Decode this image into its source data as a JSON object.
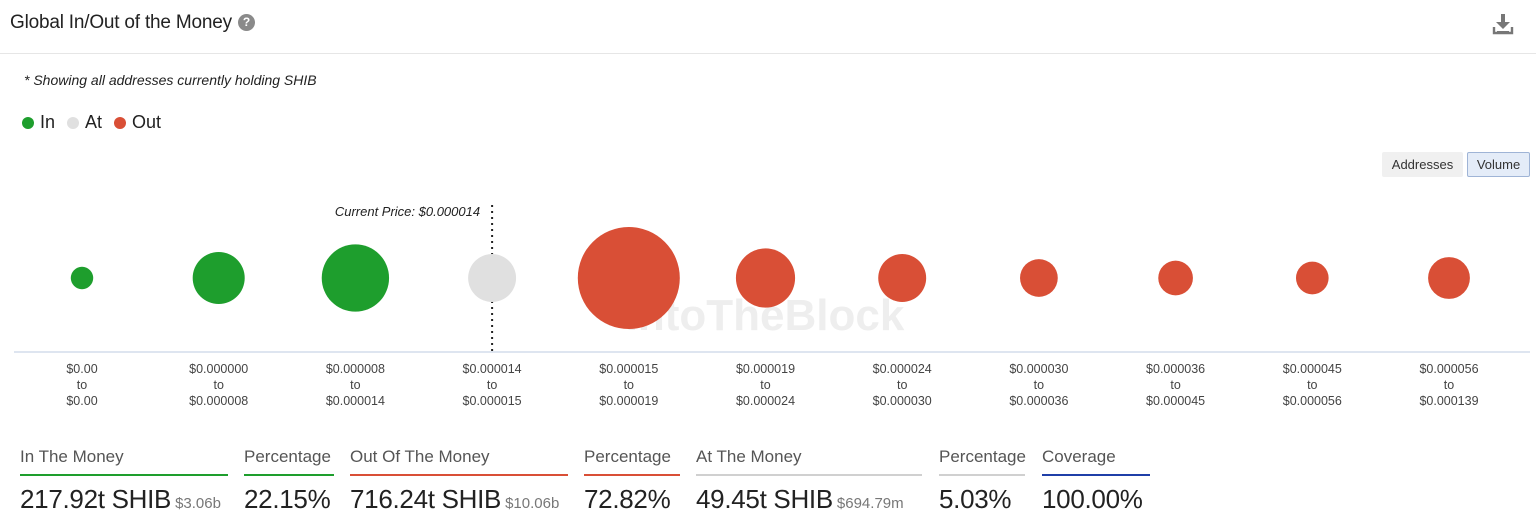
{
  "header": {
    "title": "Global In/Out of the Money",
    "help_glyph": "?"
  },
  "note": "* Showing all addresses currently holding SHIB",
  "legend": [
    {
      "label": "In",
      "color": "#1e9e2d"
    },
    {
      "label": "At",
      "color": "#e0e0e0"
    },
    {
      "label": "Out",
      "color": "#d94f36"
    }
  ],
  "toggles": {
    "addresses": "Addresses",
    "volume": "Volume",
    "active": "Volume"
  },
  "colors": {
    "in": "#1e9e2d",
    "at": "#e0e0e0",
    "out": "#d94f36",
    "axis": "#c9d5e6",
    "watermark": "#eeeeee"
  },
  "chart_data": {
    "type": "bubble",
    "measure": "Volume",
    "current_price_label": "Current Price: $0.000014",
    "watermark": "IntoTheBlock",
    "range_connector": "to",
    "buckets": [
      {
        "from": "$0.00",
        "to": "$0.00",
        "status": "in",
        "relative_size": 0.22
      },
      {
        "from": "$0.000000",
        "to": "$0.000008",
        "status": "in",
        "relative_size": 0.51
      },
      {
        "from": "$0.000008",
        "to": "$0.000014",
        "status": "in",
        "relative_size": 0.66
      },
      {
        "from": "$0.000014",
        "to": "$0.000015",
        "status": "at",
        "relative_size": 0.47
      },
      {
        "from": "$0.000015",
        "to": "$0.000019",
        "status": "out",
        "relative_size": 1.0
      },
      {
        "from": "$0.000019",
        "to": "$0.000024",
        "status": "out",
        "relative_size": 0.58
      },
      {
        "from": "$0.000024",
        "to": "$0.000030",
        "status": "out",
        "relative_size": 0.47
      },
      {
        "from": "$0.000030",
        "to": "$0.000036",
        "status": "out",
        "relative_size": 0.37
      },
      {
        "from": "$0.000036",
        "to": "$0.000045",
        "status": "out",
        "relative_size": 0.34
      },
      {
        "from": "$0.000045",
        "to": "$0.000056",
        "status": "out",
        "relative_size": 0.32
      },
      {
        "from": "$0.000056",
        "to": "$0.000139",
        "status": "out",
        "relative_size": 0.41
      }
    ]
  },
  "metrics": [
    {
      "label": "In The Money",
      "value": "217.92t SHIB",
      "sub": "$3.06b",
      "color": "#1e9e2d"
    },
    {
      "label": "Percentage",
      "value": "22.15%",
      "sub": "",
      "color": "#1e9e2d"
    },
    {
      "label": "Out Of The Money",
      "value": "716.24t SHIB",
      "sub": "$10.06b",
      "color": "#d94f36"
    },
    {
      "label": "Percentage",
      "value": "72.82%",
      "sub": "",
      "color": "#d94f36"
    },
    {
      "label": "At The Money",
      "value": "49.45t SHIB",
      "sub": "$694.79m",
      "color": "#d0d0d0"
    },
    {
      "label": "Percentage",
      "value": "5.03%",
      "sub": "",
      "color": "#d0d0d0"
    },
    {
      "label": "Coverage",
      "value": "100.00%",
      "sub": "",
      "color": "#1f3fa8"
    }
  ]
}
